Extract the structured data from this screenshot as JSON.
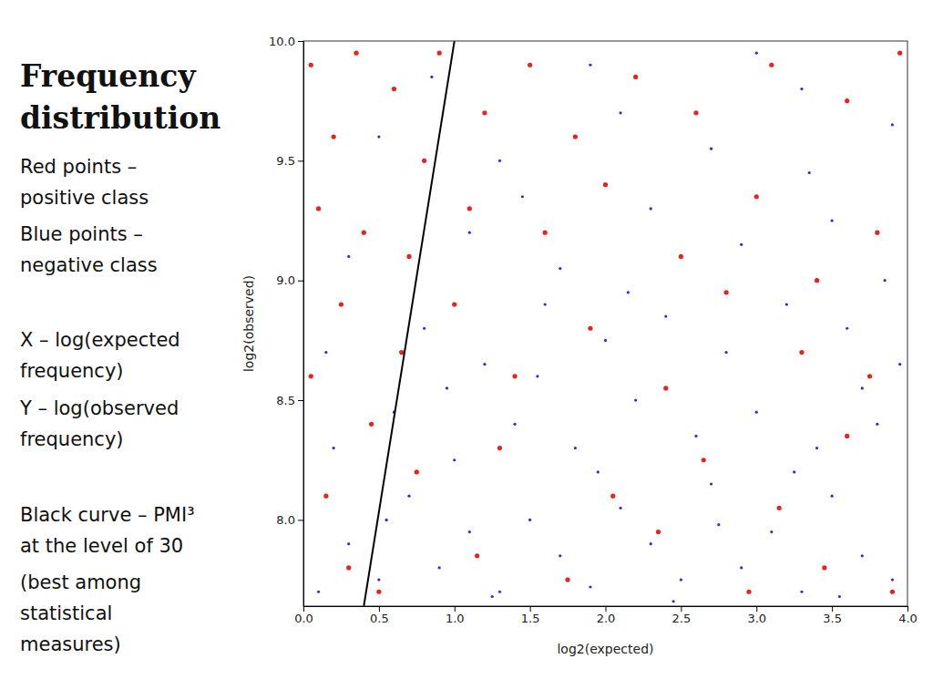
{
  "chart_data": {
    "type": "scatter",
    "title": "Frequency distribution",
    "annotations": [
      [
        "Red points –",
        "positive class"
      ],
      [
        "Blue points –",
        "negative class"
      ],
      [
        "X – log(expected",
        "frequency)"
      ],
      [
        "Y – log(observed",
        "frequency)"
      ],
      [
        "Black curve – PMI³",
        "at the level of 30"
      ],
      [
        "(best among",
        "statistical",
        "measures)"
      ]
    ],
    "x_label": "log2(expected)",
    "y_label": "log2(observed)",
    "xlim": [
      0,
      4
    ],
    "ylim": [
      7.64,
      10
    ],
    "xticks": [
      {
        "value": 0,
        "label": "0.0"
      },
      {
        "value": 0.5,
        "label": "0.5"
      },
      {
        "value": 1,
        "label": "1.0"
      },
      {
        "value": 1.5,
        "label": "1.5"
      },
      {
        "value": 2,
        "label": "2.0"
      },
      {
        "value": 2.5,
        "label": "2.5"
      },
      {
        "value": 3,
        "label": "3.0"
      },
      {
        "value": 3.5,
        "label": "3.5"
      },
      {
        "value": 4,
        "label": "4.0"
      }
    ],
    "yticks": [
      {
        "value": 8,
        "label": "8.0"
      },
      {
        "value": 8.5,
        "label": "8.5"
      },
      {
        "value": 9,
        "label": "9.0"
      },
      {
        "value": 9.5,
        "label": "9.5"
      },
      {
        "value": 10,
        "label": "10.0"
      }
    ],
    "series": [
      {
        "color": "#2b2be6",
        "marker": "point",
        "x": [
          0.1,
          0.3,
          0.5,
          0.7,
          0.9,
          1.1,
          1.3,
          1.5,
          1.7,
          1.9,
          2.1,
          2.3,
          2.5,
          2.7,
          2.9,
          3.1,
          3.3,
          3.5,
          3.7,
          3.9,
          0.2,
          0.6,
          1.0,
          1.4,
          1.8,
          2.2,
          2.6,
          3.0,
          3.4,
          3.8,
          0.15,
          0.8,
          1.2,
          1.6,
          2.0,
          2.4,
          2.8,
          3.2,
          3.6,
          3.95,
          0.3,
          1.1,
          1.7,
          2.3,
          2.9,
          3.5,
          3.85,
          0.5,
          1.3,
          2.1,
          2.7,
          3.3,
          3.9,
          1.9,
          3.0,
          0.85,
          1.25,
          2.45,
          3.55,
          0.55,
          1.95,
          3.25,
          2.75,
          1.55,
          3.7,
          0.95,
          2.15,
          3.35,
          1.45
        ],
        "values": [
          7.7,
          7.9,
          7.75,
          8.1,
          7.8,
          7.95,
          7.7,
          8.0,
          7.85,
          7.72,
          8.05,
          7.9,
          7.75,
          8.15,
          7.8,
          7.95,
          7.7,
          8.1,
          7.85,
          7.75,
          8.3,
          8.45,
          8.25,
          8.4,
          8.3,
          8.5,
          8.35,
          8.45,
          8.3,
          8.4,
          8.7,
          8.8,
          8.65,
          8.9,
          8.75,
          8.85,
          8.7,
          8.9,
          8.8,
          8.65,
          9.1,
          9.2,
          9.05,
          9.3,
          9.15,
          9.25,
          9.0,
          9.6,
          9.5,
          9.7,
          9.55,
          9.8,
          9.65,
          9.9,
          9.95,
          9.85,
          7.68,
          7.66,
          7.68,
          8.0,
          8.2,
          8.2,
          7.98,
          8.6,
          8.55,
          8.55,
          8.95,
          9.45,
          9.35
        ]
      },
      {
        "color": "#e8231c",
        "marker": "circle",
        "x": [
          0.05,
          0.2,
          0.35,
          0.1,
          0.4,
          0.25,
          0.05,
          0.45,
          0.15,
          0.3,
          0.6,
          0.8,
          0.7,
          0.9,
          1.2,
          1.5,
          1.8,
          2.2,
          2.6,
          3.1,
          3.6,
          3.95,
          1.1,
          1.6,
          2.0,
          2.5,
          3.0,
          3.4,
          3.8,
          0.65,
          1.0,
          1.4,
          1.9,
          2.4,
          2.8,
          3.3,
          3.75,
          0.75,
          1.3,
          2.05,
          2.65,
          3.15,
          3.6,
          0.5,
          1.15,
          1.75,
          2.35,
          2.95,
          3.45,
          3.9
        ],
        "values": [
          9.9,
          9.6,
          9.95,
          9.3,
          9.2,
          8.9,
          8.6,
          8.4,
          8.1,
          7.8,
          9.8,
          9.5,
          9.1,
          9.95,
          9.7,
          9.9,
          9.6,
          9.85,
          9.7,
          9.9,
          9.75,
          9.95,
          9.3,
          9.2,
          9.4,
          9.1,
          9.35,
          9.0,
          9.2,
          8.7,
          8.9,
          8.6,
          8.8,
          8.55,
          8.95,
          8.7,
          8.6,
          8.2,
          8.3,
          8.1,
          8.25,
          8.05,
          8.35,
          7.7,
          7.85,
          7.75,
          7.95,
          7.7,
          7.8,
          7.7
        ]
      },
      {
        "type": "line",
        "color": "#000000",
        "line_style": "solid",
        "x": [
          0.4,
          1.0
        ],
        "values": [
          7.64,
          10
        ]
      }
    ]
  }
}
